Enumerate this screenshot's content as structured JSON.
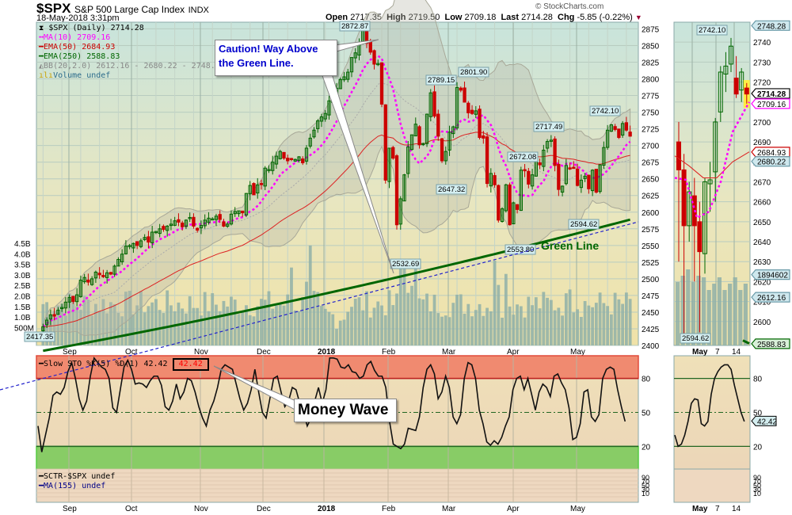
{
  "header": {
    "symbol": "$SPX",
    "name": "S&P 500 Large Cap Index",
    "exchange": "INDX",
    "datetime": "18-May-2018 3:31pm",
    "watermark": "© StockCharts.com",
    "open_label": "Open",
    "open": "2717.35",
    "high_label": "High",
    "high": "2719.50",
    "low_label": "Low",
    "low": "2709.18",
    "last_label": "Last",
    "last": "2714.28",
    "chg_label": "Chg",
    "chg": "-5.85 (-0.22%)"
  },
  "legend": {
    "main": "$SPX (Daily) 2714.28",
    "ma10": "MA(10) 2709.16",
    "ema50": "EMA(50) 2684.93",
    "ema250": "EMA(250) 2588.83",
    "bb": "BB(20,2.0) 2612.16 - 2680.22 - 2748.28",
    "volume": "Volume undef",
    "sto": "Slow STO %K(5) %D(1) 42.42",
    "sto_value": "42.42",
    "sctr": "SCTR-$SPX undef",
    "ma155": "MA(155) undef"
  },
  "annotations": {
    "caution_line1": "Caution! Way Above",
    "caution_line2": "the Green Line.",
    "green_line": "Green Line",
    "money_wave": "Money Wave"
  },
  "colors": {
    "up": "#006600",
    "down": "#cc0000",
    "ma10": "#ff00ff",
    "ema50": "#dd2222",
    "ema250": "#006600",
    "trend": "#2222cc",
    "volume": "#8fb0a8",
    "overbought": "#f08a70",
    "oversold": "#88cc66",
    "caution_text": "#0000cc"
  },
  "chart_data": [
    {
      "type": "candlestick",
      "title": "$SPX (Daily) S&P 500 Large Cap Index",
      "xlabel": "",
      "ylabel": "Price",
      "ylim": [
        2400,
        2885
      ],
      "y_ticks": [
        2400,
        2425,
        2450,
        2475,
        2500,
        2525,
        2550,
        2575,
        2600,
        2625,
        2650,
        2675,
        2700,
        2725,
        2750,
        2775,
        2800,
        2825,
        2850,
        2875
      ],
      "x_ticks": [
        "Sep",
        "Oct",
        "Nov",
        "Dec",
        "2018",
        "Feb",
        "Mar",
        "Apr",
        "May"
      ],
      "volume_ticks": [
        "500M",
        "1.0B",
        "1.5B",
        "2.0B",
        "2.5B",
        "3.0B",
        "3.5B",
        "4.0B",
        "4.5B"
      ],
      "price_labels": [
        {
          "label": "2417.35",
          "x": "Aug 21",
          "y": 2417.35
        },
        {
          "label": "2872.87",
          "x": "Jan 26",
          "y": 2872.87
        },
        {
          "label": "2532.69",
          "x": "Feb 09",
          "y": 2532.69
        },
        {
          "label": "2789.15",
          "x": "Feb 27",
          "y": 2789.15
        },
        {
          "label": "2801.90",
          "x": "Mar 13",
          "y": 2801.9
        },
        {
          "label": "2647.32",
          "x": "Mar 01",
          "y": 2647.32
        },
        {
          "label": "2672.08",
          "x": "Mar 28",
          "y": 2672.08
        },
        {
          "label": "2553.80",
          "x": "Apr 02",
          "y": 2553.8
        },
        {
          "label": "2717.49",
          "x": "Apr 18",
          "y": 2717.49
        },
        {
          "label": "2594.62",
          "x": "May 03",
          "y": 2594.62
        },
        {
          "label": "2742.10",
          "x": "May 14",
          "y": 2742.1
        }
      ],
      "close_series": [
        2428,
        2438,
        2446,
        2444,
        2453,
        2457,
        2465,
        2472,
        2466,
        2476,
        2498,
        2502,
        2495,
        2500,
        2510,
        2506,
        2503,
        2509,
        2507,
        2519,
        2529,
        2537,
        2549,
        2550,
        2553,
        2550,
        2557,
        2562,
        2555,
        2570,
        2571,
        2575,
        2574,
        2579,
        2582,
        2587,
        2585,
        2578,
        2588,
        2592,
        2579,
        2573,
        2580,
        2588,
        2591,
        2590,
        2594,
        2589,
        2579,
        2582,
        2597,
        2601,
        2602,
        2599,
        2628,
        2640,
        2626,
        2641,
        2643,
        2666,
        2664,
        2675,
        2684,
        2691,
        2681,
        2677,
        2680,
        2679,
        2683,
        2674,
        2696,
        2711,
        2723,
        2737,
        2743,
        2748,
        2767,
        2777,
        2786,
        2799,
        2803,
        2810,
        2832,
        2839,
        2851,
        2873,
        2853,
        2840,
        2822,
        2823,
        2762,
        2648,
        2696,
        2681,
        2581,
        2620,
        2656,
        2698,
        2716,
        2732,
        2701,
        2703,
        2747,
        2779,
        2744,
        2714,
        2677,
        2691,
        2720,
        2728,
        2787,
        2783,
        2765,
        2749,
        2748,
        2752,
        2712,
        2711,
        2643,
        2658,
        2641,
        2588,
        2605,
        2641,
        2581,
        2614,
        2604,
        2663,
        2662,
        2642,
        2656,
        2677,
        2671,
        2693,
        2706,
        2708,
        2670,
        2634,
        2639,
        2670,
        2666,
        2667,
        2640,
        2648,
        2654,
        2635,
        2663,
        2630,
        2671,
        2697,
        2723,
        2731,
        2724,
        2712,
        2733,
        2723,
        2714
      ],
      "ma10_last": 2709.16,
      "ema50_last": 2684.93,
      "ema250_last": 2588.83,
      "bb_upper": 2748.28,
      "bb_mid": 2680.22,
      "bb_lower": 2612.16,
      "volume_last": 1894602
    },
    {
      "type": "line",
      "title": "Slow STO %K(5) %D(1)",
      "ylim": [
        0,
        100
      ],
      "y_ticks": [
        20,
        50,
        80
      ],
      "bands": {
        "overbought": [
          80,
          100
        ],
        "oversold": [
          0,
          20
        ]
      },
      "x_ticks": [
        "Sep",
        "Oct",
        "Nov",
        "Dec",
        "2018",
        "Feb",
        "Mar",
        "Apr",
        "May"
      ],
      "values": [
        38,
        15,
        30,
        45,
        65,
        68,
        66,
        72,
        86,
        94,
        80,
        62,
        52,
        60,
        82,
        98,
        94,
        90,
        88,
        80,
        54,
        50,
        70,
        90,
        96,
        88,
        75,
        76,
        75,
        72,
        78,
        82,
        82,
        74,
        55,
        52,
        60,
        75,
        62,
        68,
        80,
        78,
        68,
        55,
        45,
        38,
        52,
        60,
        72,
        88,
        92,
        90,
        88,
        75,
        62,
        52,
        58,
        70,
        88,
        68,
        50,
        45,
        62,
        80,
        82,
        68,
        55,
        60,
        72,
        70,
        58,
        50,
        38,
        45,
        60,
        72,
        58,
        70,
        98,
        98,
        97,
        90,
        89,
        92,
        86,
        85,
        80,
        82,
        92,
        95,
        87,
        82,
        82,
        72,
        42,
        22,
        20,
        18,
        22,
        36,
        35,
        34,
        46,
        72,
        88,
        92,
        84,
        62,
        68,
        82,
        72,
        46,
        40,
        48,
        80,
        94,
        92,
        80,
        52,
        40,
        24,
        21,
        25,
        22,
        28,
        38,
        46,
        70,
        80,
        82,
        70,
        80,
        66,
        52,
        68,
        75,
        72,
        64,
        82,
        84,
        76,
        70,
        54,
        26,
        28,
        40,
        68,
        70,
        46,
        42,
        48,
        80,
        88,
        90,
        88,
        70,
        55,
        42
      ],
      "last": 42.42
    },
    {
      "type": "line",
      "title": "SCTR-$SPX undef / MA(155) undef",
      "y_ticks": [
        10,
        30,
        50,
        70,
        90
      ],
      "values": []
    }
  ],
  "side_panel": {
    "x_ticks": [
      "May",
      "7",
      "14"
    ],
    "y_ticks": [
      2600,
      2610,
      2620,
      2630,
      2640,
      2650,
      2660,
      2670,
      2680,
      2690,
      2700,
      2710,
      2720,
      2730,
      2740
    ],
    "ylim": [
      2588,
      2750
    ],
    "tags": [
      {
        "label": "2748.28",
        "value": 2748.28,
        "color": "#cfe8ee",
        "border": "#6a9aa8"
      },
      {
        "label": "2714.28",
        "value": 2714.28,
        "color": "#ffffff",
        "border": "#000000",
        "bold": true
      },
      {
        "label": "2709.16",
        "value": 2709.16,
        "color": "#ffffff",
        "border": "#ff00ff"
      },
      {
        "label": "2684.93",
        "value": 2684.93,
        "color": "#ffffff",
        "border": "#cc0000"
      },
      {
        "label": "2680.22",
        "value": 2680.22,
        "color": "#cfe8ee",
        "border": "#6a9aa8"
      },
      {
        "label": "1894602",
        "value": 2623.5,
        "color": "#cfe8ee",
        "border": "#6a9aa8"
      },
      {
        "label": "2612.16",
        "value": 2612.16,
        "color": "#cfe8ee",
        "border": "#6a9aa8"
      },
      {
        "label": "2588.83",
        "value": 2588.83,
        "color": "#d8f0d8",
        "border": "#006600"
      }
    ],
    "low_label": "2594.62",
    "high_label": "2742.10",
    "sto_tag": "42.42",
    "sto_values": [
      30,
      20,
      22,
      30,
      42,
      58,
      62,
      61,
      40,
      38,
      42,
      66,
      80,
      86,
      90,
      92,
      92,
      88,
      74,
      62,
      50,
      42
    ]
  }
}
